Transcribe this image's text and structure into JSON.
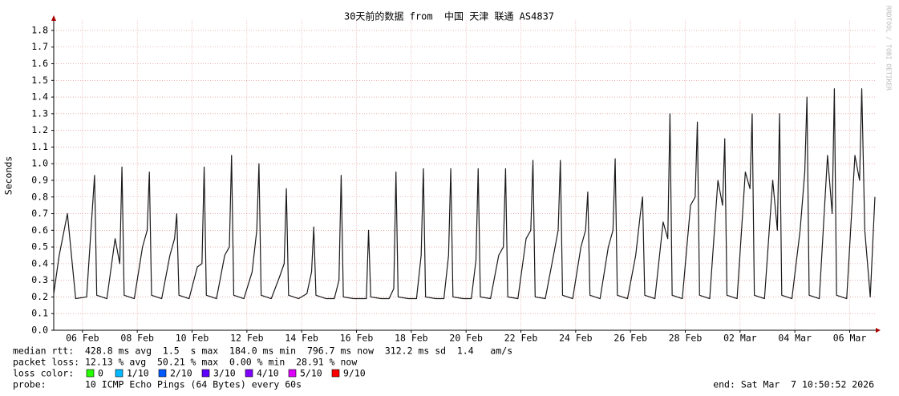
{
  "chart_data": {
    "type": "line",
    "title": "30天前的数据 from  中国 天津 联通 AS4837",
    "y_label": "Seconds",
    "side_note": "RRDTOOL / TOBI OETIKER",
    "xlim": [
      0,
      30
    ],
    "xticks": [
      {
        "value": 1.049,
        "label": "06 Feb"
      },
      {
        "value": 3.049,
        "label": "08 Feb"
      },
      {
        "value": 5.049,
        "label": "10 Feb"
      },
      {
        "value": 7.049,
        "label": "12 Feb"
      },
      {
        "value": 9.049,
        "label": "14 Feb"
      },
      {
        "value": 11.049,
        "label": "16 Feb"
      },
      {
        "value": 13.049,
        "label": "18 Feb"
      },
      {
        "value": 15.049,
        "label": "20 Feb"
      },
      {
        "value": 17.049,
        "label": "22 Feb"
      },
      {
        "value": 19.049,
        "label": "24 Feb"
      },
      {
        "value": 21.049,
        "label": "26 Feb"
      },
      {
        "value": 23.049,
        "label": "28 Feb"
      },
      {
        "value": 25.049,
        "label": "02 Mar"
      },
      {
        "value": 27.049,
        "label": "04 Mar"
      },
      {
        "value": 29.049,
        "label": "06 Mar"
      }
    ],
    "ylim": [
      0,
      1.86
    ],
    "yticks": [
      {
        "value": 0,
        "label": "0.0"
      },
      0.1,
      0.2,
      0.3,
      0.4,
      0.5,
      0.6,
      0.7,
      0.8,
      0.9,
      {
        "value": 1,
        "label": "1.0"
      },
      1.1,
      1.2,
      1.3,
      1.4,
      1.5,
      1.6,
      1.7,
      1.8
    ],
    "grid": true,
    "x": [
      0,
      0.2,
      0.5,
      0.8,
      1.2,
      1.49,
      1.57,
      1.94,
      2.24,
      2.41,
      2.49,
      2.57,
      2.94,
      3.24,
      3.41,
      3.49,
      3.57,
      3.94,
      4.24,
      4.41,
      4.49,
      4.57,
      4.94,
      5.24,
      5.41,
      5.49,
      5.57,
      5.94,
      6.24,
      6.41,
      6.49,
      6.57,
      6.94,
      7.24,
      7.41,
      7.49,
      7.57,
      7.94,
      8.24,
      8.41,
      8.49,
      8.57,
      8.94,
      9.24,
      9.41,
      9.49,
      9.57,
      9.94,
      10.24,
      10.41,
      10.49,
      10.57,
      10.94,
      11.24,
      11.41,
      11.49,
      11.57,
      11.94,
      12.24,
      12.41,
      12.49,
      12.57,
      12.94,
      13.24,
      13.41,
      13.49,
      13.57,
      13.94,
      14.24,
      14.41,
      14.49,
      14.57,
      14.94,
      15.24,
      15.41,
      15.49,
      15.57,
      15.94,
      16.24,
      16.41,
      16.49,
      16.57,
      16.94,
      17.24,
      17.41,
      17.49,
      17.57,
      17.94,
      18.24,
      18.41,
      18.49,
      18.57,
      18.94,
      19.24,
      19.41,
      19.49,
      19.57,
      19.94,
      20.24,
      20.41,
      20.49,
      20.57,
      20.94,
      21.24,
      21.41,
      21.49,
      21.57,
      21.94,
      22.24,
      22.41,
      22.49,
      22.57,
      22.94,
      23.24,
      23.41,
      23.49,
      23.57,
      23.94,
      24.24,
      24.41,
      24.49,
      24.57,
      24.94,
      25.24,
      25.41,
      25.49,
      25.57,
      25.94,
      26.24,
      26.41,
      26.49,
      26.57,
      26.94,
      27.24,
      27.41,
      27.49,
      27.57,
      27.94,
      28.24,
      28.41,
      28.49,
      28.57,
      28.94,
      29.24,
      29.41,
      29.49,
      29.6,
      29.8,
      29.97
    ],
    "series": [
      {
        "color": "#1a1a1a",
        "values": [
          0.22,
          0.45,
          0.7,
          0.19,
          0.2,
          0.93,
          0.21,
          0.19,
          0.55,
          0.4,
          0.98,
          0.21,
          0.19,
          0.5,
          0.6,
          0.95,
          0.21,
          0.19,
          0.45,
          0.55,
          0.7,
          0.21,
          0.19,
          0.38,
          0.4,
          0.98,
          0.21,
          0.19,
          0.45,
          0.5,
          1.05,
          0.21,
          0.19,
          0.35,
          0.6,
          1.0,
          0.21,
          0.19,
          0.32,
          0.4,
          0.85,
          0.21,
          0.19,
          0.22,
          0.35,
          0.62,
          0.21,
          0.19,
          0.19,
          0.3,
          0.93,
          0.2,
          0.19,
          0.19,
          0.19,
          0.6,
          0.2,
          0.19,
          0.19,
          0.25,
          0.95,
          0.2,
          0.19,
          0.19,
          0.45,
          0.97,
          0.2,
          0.19,
          0.19,
          0.45,
          0.97,
          0.2,
          0.19,
          0.19,
          0.42,
          0.97,
          0.2,
          0.19,
          0.45,
          0.5,
          0.97,
          0.2,
          0.19,
          0.55,
          0.6,
          1.02,
          0.2,
          0.19,
          0.45,
          0.6,
          1.02,
          0.21,
          0.19,
          0.5,
          0.6,
          0.83,
          0.21,
          0.19,
          0.5,
          0.6,
          1.03,
          0.21,
          0.19,
          0.45,
          0.7,
          0.8,
          0.21,
          0.19,
          0.65,
          0.55,
          1.3,
          0.21,
          0.19,
          0.75,
          0.8,
          1.25,
          0.21,
          0.19,
          0.9,
          0.75,
          1.15,
          0.21,
          0.19,
          0.95,
          0.85,
          1.3,
          0.21,
          0.19,
          0.9,
          0.6,
          1.3,
          0.21,
          0.19,
          0.6,
          0.95,
          1.4,
          0.21,
          0.19,
          1.05,
          0.7,
          1.45,
          0.21,
          0.19,
          1.05,
          0.9,
          1.45,
          0.6,
          0.2,
          0.8
        ]
      }
    ],
    "info": {
      "median_rtt": "median rtt:  428.8 ms avg  1.5  s max  184.0 ms min  796.7 ms now  312.2 ms sd  1.4   am/s",
      "packet_loss": "packet loss: 12.13 % avg  50.21 % max  0.00 % min  28.91 % now",
      "loss_color_label": "loss color:",
      "loss_colors": [
        {
          "label": "0",
          "color": "#26ff00"
        },
        {
          "label": "1/10",
          "color": "#00b8ff"
        },
        {
          "label": "2/10",
          "color": "#0059ff"
        },
        {
          "label": "3/10",
          "color": "#5e00ff"
        },
        {
          "label": "4/10",
          "color": "#7e00ff"
        },
        {
          "label": "5/10",
          "color": "#dd00ff"
        },
        {
          "label": "9/10",
          "color": "#ff0000"
        }
      ],
      "probe": "probe:       10 ICMP Echo Pings (64 Bytes) every 60s",
      "end": "end: Sat Mar  7 10:50:52 2026"
    }
  }
}
